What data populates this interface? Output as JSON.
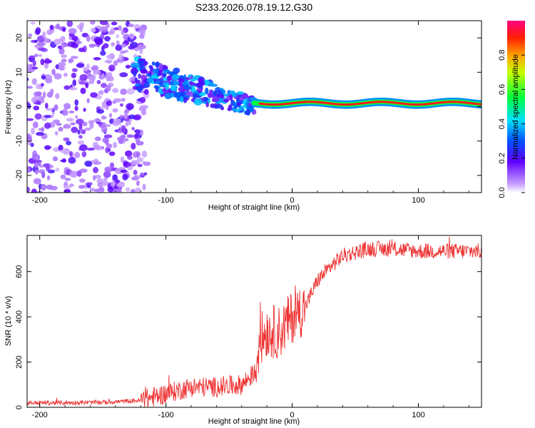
{
  "title": "S233.2026.078.19.12.G30",
  "chart_data": [
    {
      "type": "heatmap",
      "name": "spectrogram",
      "xlabel": "Height of straight line (km)",
      "ylabel": "Frequency (Hz)",
      "xlim": [
        -210,
        150
      ],
      "ylim": [
        -25,
        25
      ],
      "xticks": [
        -200,
        -100,
        0,
        100
      ],
      "yticks": [
        -20,
        -10,
        0,
        10,
        20
      ],
      "colorbar": {
        "label": "Normalized spectral amplitude",
        "range": [
          0.0,
          1.0
        ],
        "ticks": [
          "0.0",
          "0.2",
          "0.4",
          "0.6",
          "0.8"
        ]
      },
      "regions": [
        {
          "x_range": [
            -210,
            -120
          ],
          "freq_spread_hz": [
            -25,
            25
          ],
          "amplitude": 0.15,
          "description": "noise"
        },
        {
          "x_range": [
            -120,
            -30
          ],
          "freq_center_hz": [
            10,
            0
          ],
          "freq_spread_hz": 8,
          "amplitude": 0.35
        },
        {
          "x_range": [
            -30,
            150
          ],
          "freq_center_hz": 1,
          "freq_spread_hz": 1.5,
          "amplitude": 0.95
        }
      ]
    },
    {
      "type": "line",
      "name": "snr",
      "xlabel": "Height of straight line (km)",
      "ylabel": "SNR (10 * v/v)",
      "xlim": [
        -210,
        150
      ],
      "ylim": [
        0,
        760
      ],
      "xticks": [
        -200,
        -100,
        0,
        100
      ],
      "yticks": [
        0,
        200,
        400,
        600
      ],
      "color": "#ee3333",
      "trend": {
        "x": [
          -210,
          -180,
          -150,
          -120,
          -100,
          -80,
          -60,
          -40,
          -30,
          -25,
          -20,
          -10,
          0,
          10,
          20,
          30,
          40,
          60,
          80,
          100,
          120,
          150
        ],
        "y": [
          20,
          20,
          22,
          30,
          60,
          90,
          90,
          100,
          150,
          300,
          340,
          330,
          400,
          440,
          560,
          620,
          670,
          700,
          700,
          690,
          690,
          690
        ]
      },
      "noise_amplitude": [
        {
          "x_range": [
            -210,
            -120
          ],
          "amp": 10
        },
        {
          "x_range": [
            -120,
            -30
          ],
          "amp": 45
        },
        {
          "x_range": [
            -30,
            10
          ],
          "amp": 120
        },
        {
          "x_range": [
            10,
            150
          ],
          "amp": 35
        }
      ]
    }
  ]
}
